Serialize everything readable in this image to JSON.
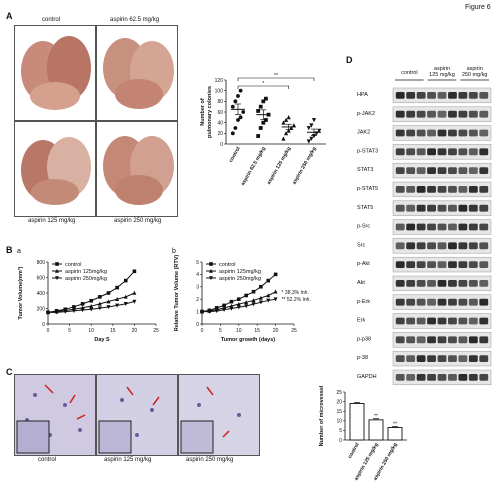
{
  "figure_label": "Figure 6",
  "panel_A": {
    "label": "A",
    "photo_captions": [
      "control",
      "aspirin 62.5 mg/kg",
      "aspirin 125 mg/kg",
      "aspirin 250 mg/kg"
    ]
  },
  "panel_B": {
    "label": "B",
    "sub_a": "a",
    "sub_b": "b"
  },
  "panel_C": {
    "label": "C",
    "photo_captions": [
      "control",
      "aspirin 125 mg/kg",
      "aspirin 250 mg/kg"
    ]
  },
  "panel_D": {
    "label": "D",
    "group_labels": [
      "control",
      "aspirin\n125 mg/kg",
      "aspirin\n250 mg/kg"
    ],
    "proteins": [
      "HPA",
      "p-JAK2",
      "JAK2",
      "p-STAT3",
      "STAT3",
      "p-STAT5",
      "STAT5",
      "p-Src",
      "Src",
      "p-Akt",
      "Akt",
      "p-Erk",
      "Erk",
      "p-p38",
      "p-38",
      "GAPDH"
    ]
  },
  "chart_data": [
    {
      "id": "colonies",
      "type": "scatter",
      "ylabel": "Number of\npulmonary colonies",
      "categories": [
        "control",
        "aspirin 62.5 mg/kg",
        "aspirin 125 mg/kg",
        "aspirin 250 mg/kg"
      ],
      "yticks": [
        0,
        20,
        40,
        60,
        80,
        100,
        120
      ],
      "ylim": [
        0,
        120
      ],
      "means": [
        65,
        55,
        32,
        22
      ],
      "sem": [
        10,
        9,
        5,
        6
      ],
      "points": [
        [
          20,
          30,
          45,
          50,
          60,
          70,
          80,
          90,
          100
        ],
        [
          15,
          30,
          40,
          45,
          55,
          62,
          70,
          80,
          85
        ],
        [
          10,
          20,
          25,
          30,
          35,
          40,
          45,
          50
        ],
        [
          5,
          10,
          15,
          20,
          25,
          30,
          35,
          45
        ]
      ],
      "markers": [
        "circle",
        "square",
        "triangle",
        "triangle-down"
      ],
      "significance": [
        {
          "from": 0,
          "to": 2,
          "label": "*"
        },
        {
          "from": 0,
          "to": 3,
          "label": "**"
        }
      ]
    },
    {
      "id": "tumor_volume",
      "type": "line",
      "ylabel": "Tumor Volume(mm³)",
      "xlabel": "Day S",
      "ylim": [
        0,
        800
      ],
      "yticks": [
        0,
        200,
        400,
        600,
        800
      ],
      "xlim": [
        0,
        25
      ],
      "xticks": [
        0,
        5,
        10,
        15,
        20,
        25
      ],
      "x": [
        0,
        2,
        4,
        6,
        8,
        10,
        12,
        14,
        16,
        18,
        20
      ],
      "legend": [
        "control",
        "aspirin  125mg/kg",
        "aspirin  250mg/kg"
      ],
      "series": [
        {
          "name": "control",
          "values": [
            150,
            170,
            190,
            220,
            260,
            300,
            350,
            400,
            470,
            560,
            680
          ]
        },
        {
          "name": "aspirin  125mg/kg",
          "values": [
            150,
            160,
            175,
            190,
            210,
            230,
            260,
            290,
            320,
            350,
            400
          ]
        },
        {
          "name": "aspirin  250mg/kg",
          "values": [
            150,
            150,
            160,
            170,
            180,
            190,
            205,
            220,
            240,
            260,
            290
          ]
        }
      ]
    },
    {
      "id": "rtv",
      "type": "line",
      "ylabel": "Relative Tumor Volume (RTV)",
      "xlabel": "Tumor growth (days)",
      "ylim": [
        0,
        5
      ],
      "yticks": [
        0,
        1,
        2,
        3,
        4,
        5
      ],
      "xlim": [
        0,
        25
      ],
      "xticks": [
        0,
        5,
        10,
        15,
        20,
        25
      ],
      "x": [
        0,
        2,
        4,
        6,
        8,
        10,
        12,
        14,
        16,
        18,
        20
      ],
      "legend": [
        "control",
        "aspirin  125mg/kg",
        "aspirin  250mg/kg"
      ],
      "series": [
        {
          "name": "control",
          "values": [
            1.0,
            1.1,
            1.3,
            1.5,
            1.8,
            2.0,
            2.3,
            2.6,
            3.0,
            3.5,
            4.0
          ]
        },
        {
          "name": "aspirin  125mg/kg",
          "values": [
            1.0,
            1.05,
            1.15,
            1.3,
            1.45,
            1.6,
            1.75,
            1.9,
            2.1,
            2.3,
            2.6
          ]
        },
        {
          "name": "aspirin  250mg/kg",
          "values": [
            1.0,
            1.0,
            1.05,
            1.15,
            1.25,
            1.35,
            1.45,
            1.6,
            1.75,
            1.9,
            2.0
          ]
        }
      ],
      "annotations": [
        {
          "marker": "*",
          "text": "38.3% Inh."
        },
        {
          "marker": "**",
          "text": "52.2% Inh."
        }
      ]
    },
    {
      "id": "microvessel",
      "type": "bar",
      "ylabel": "Number of microvessel",
      "categories": [
        "control",
        "aspirin 125 mg/kg",
        "aspirin 250 mg/kg"
      ],
      "values": [
        19,
        10.5,
        6.5
      ],
      "errors": [
        0.6,
        0.6,
        0.5
      ],
      "ylim": [
        0,
        25
      ],
      "yticks": [
        0,
        5,
        10,
        15,
        20,
        25
      ],
      "significance": [
        "",
        "**",
        "**"
      ]
    }
  ]
}
